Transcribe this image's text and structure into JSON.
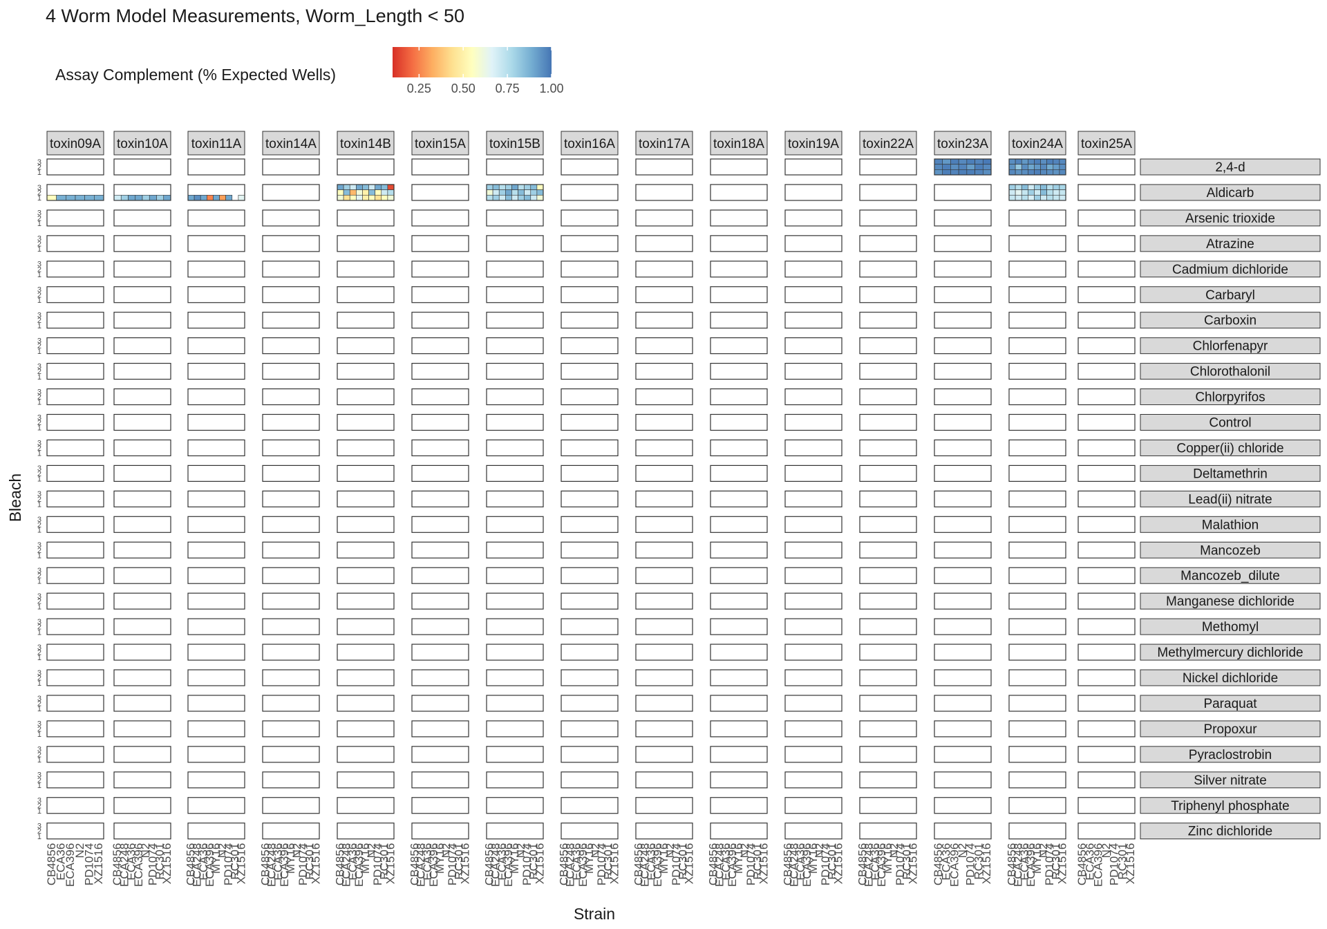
{
  "title": "4 Worm Model Measurements, Worm_Length < 50",
  "chart_data": {
    "type": "heatmap",
    "title": "4 Worm Model Measurements, Worm_Length < 50",
    "xlabel": "Strain",
    "ylabel": "Bleach",
    "legend": {
      "title": "Assay Complement (% Expected Wells)",
      "placement": "top-left",
      "ticks": [
        "0.25",
        "0.50",
        "0.75",
        "1.00"
      ],
      "range": [
        0.1,
        1.0
      ],
      "palette": [
        "#d73027",
        "#f46d43",
        "#fdae61",
        "#fee090",
        "#ffffbf",
        "#e0f3f8",
        "#abd9e9",
        "#74add1",
        "#4575b4"
      ]
    },
    "bleach_levels": [
      "3",
      "2",
      "1"
    ],
    "strains_by_assay": {
      "toxin09A": [
        "CB4856",
        "ECA36",
        "ECA396",
        "N2",
        "PD1074",
        "XZ1516"
      ],
      "toxin10A": [
        "CB4856",
        "ECA248",
        "ECA36",
        "ECA396",
        "N2",
        "PD1074",
        "RC301",
        "XZ1516"
      ],
      "toxin11A": [
        "CB4856",
        "ECA248",
        "ECA36",
        "ECA396",
        "MY16",
        "N2",
        "PD1074",
        "RC301",
        "XZ1516"
      ],
      "toxin14A": [
        "CB4856",
        "ECA248",
        "ECA36",
        "ECA396",
        "MY16",
        "N2",
        "PD1074",
        "RC301",
        "XZ1516"
      ],
      "toxin14B": [
        "CB4856",
        "ECA248",
        "ECA36",
        "ECA396",
        "MY16",
        "N2",
        "PD1074",
        "RC301",
        "XZ1516"
      ],
      "toxin15A": [
        "CB4856",
        "ECA248",
        "ECA36",
        "ECA396",
        "MY16",
        "N2",
        "PD1074",
        "RC301",
        "XZ1516"
      ],
      "toxin15B": [
        "CB4856",
        "ECA248",
        "ECA36",
        "ECA396",
        "MY16",
        "N2",
        "PD1074",
        "RC301",
        "XZ1516"
      ],
      "toxin16A": [
        "CB4856",
        "ECA248",
        "ECA36",
        "ECA396",
        "MY16",
        "N2",
        "PD1074",
        "RC301",
        "XZ1516"
      ],
      "toxin17A": [
        "CB4856",
        "ECA248",
        "ECA36",
        "ECA396",
        "MY16",
        "N2",
        "PD1074",
        "RC301",
        "XZ1516"
      ],
      "toxin18A": [
        "CB4856",
        "ECA248",
        "ECA36",
        "ECA396",
        "MY16",
        "N2",
        "PD1074",
        "RC301",
        "XZ1516"
      ],
      "toxin19A": [
        "CB4856",
        "ECA248",
        "ECA36",
        "ECA396",
        "MY16",
        "N2",
        "PD1074",
        "RC301",
        "XZ1516"
      ],
      "toxin22A": [
        "CB4856",
        "ECA248",
        "ECA36",
        "ECA396",
        "MY16",
        "N2",
        "PD1074",
        "RC301",
        "XZ1516"
      ],
      "toxin23A": [
        "CB4856",
        "ECA36",
        "ECA396",
        "N2",
        "PD1074",
        "RC301",
        "XZ1516"
      ],
      "toxin24A": [
        "CB4856",
        "ECA248",
        "ECA36",
        "ECA396",
        "MY16",
        "N2",
        "PD1074",
        "RC301",
        "XZ1516"
      ],
      "toxin25A": [
        "CB4856",
        "ECA36",
        "ECA396",
        "N2",
        "PD1074",
        "RC301",
        "XZ1516"
      ]
    },
    "assays": [
      "toxin09A",
      "toxin10A",
      "toxin11A",
      "toxin14A",
      "toxin14B",
      "toxin15A",
      "toxin15B",
      "toxin16A",
      "toxin17A",
      "toxin18A",
      "toxin19A",
      "toxin22A",
      "toxin23A",
      "toxin24A",
      "toxin25A"
    ],
    "toxicants": [
      "2,4-d",
      "Aldicarb",
      "Arsenic trioxide",
      "Atrazine",
      "Cadmium dichloride",
      "Carbaryl",
      "Carboxin",
      "Chlorfenapyr",
      "Chlorothalonil",
      "Chlorpyrifos",
      "Control",
      "Copper(ii) chloride",
      "Deltamethrin",
      "Lead(ii) nitrate",
      "Malathion",
      "Mancozeb",
      "Mancozeb_dilute",
      "Manganese dichloride",
      "Methomyl",
      "Methylmercury dichloride",
      "Nickel dichloride",
      "Paraquat",
      "Propoxur",
      "Pyraclostrobin",
      "Silver nitrate",
      "Triphenyl phosphate",
      "Zinc dichloride"
    ],
    "cells_note": "Each filled panel shows 3 bleach rows (3,2,1 top to bottom) by strain columns; values are fraction of expected wells (0-1). Empty strings mean no data.",
    "cells": {
      "2,4-d": {
        "toxin23A": [
          [
            0.97,
            0.93,
            0.98,
            0.96,
            0.98,
            0.97,
            0.99
          ],
          [
            0.96,
            0.98,
            0.95,
            0.97,
            0.92,
            0.98,
            0.96
          ],
          [
            0.94,
            0.98,
            0.97,
            0.98,
            0.98,
            0.97,
            0.95
          ]
        ],
        "toxin24A": [
          [
            0.95,
            0.97,
            0.93,
            0.96,
            0.98,
            0.95,
            0.98,
            0.97,
            0.96
          ],
          [
            0.94,
            0.82,
            0.95,
            0.9,
            0.93,
            0.96,
            0.89,
            0.92,
            0.95
          ],
          [
            0.96,
            0.94,
            0.95,
            0.97,
            0.98,
            0.96,
            0.95,
            0.94,
            0.96
          ]
        ]
      },
      "Aldicarb": {
        "toxin09A": [
          [
            null,
            null,
            null,
            null,
            null,
            null
          ],
          [
            null,
            null,
            null,
            null,
            null,
            null
          ],
          [
            0.55,
            0.88,
            0.88,
            0.88,
            0.88,
            0.88
          ]
        ],
        "toxin10A": [
          [
            null,
            null,
            null,
            null,
            null,
            null,
            null,
            null
          ],
          [
            null,
            null,
            null,
            null,
            null,
            null,
            null,
            null
          ],
          [
            0.7,
            0.8,
            0.9,
            0.9,
            0.8,
            0.9,
            0.8,
            0.9
          ]
        ],
        "toxin11A": [
          [
            null,
            null,
            null,
            null,
            null,
            null,
            null,
            null,
            null
          ],
          [
            null,
            null,
            null,
            null,
            null,
            null,
            null,
            null,
            null
          ],
          [
            0.9,
            0.95,
            0.9,
            0.25,
            0.9,
            0.3,
            0.9,
            null,
            0.65
          ]
        ],
        "toxin14B": [
          [
            0.9,
            0.8,
            0.7,
            0.9,
            0.85,
            0.7,
            0.9,
            0.85,
            0.15
          ],
          [
            0.55,
            0.85,
            0.35,
            0.6,
            0.5,
            0.85,
            0.55,
            0.7,
            0.75
          ],
          [
            0.6,
            0.45,
            0.55,
            0.65,
            0.5,
            0.55,
            0.45,
            0.55,
            0.6
          ]
        ],
        "toxin15B": [
          [
            0.8,
            0.85,
            0.75,
            0.8,
            0.9,
            0.75,
            0.8,
            0.85,
            0.55
          ],
          [
            0.6,
            0.7,
            0.8,
            0.9,
            0.75,
            0.85,
            0.7,
            0.8,
            0.85
          ],
          [
            0.75,
            0.8,
            0.7,
            0.85,
            0.7,
            0.8,
            0.85,
            0.7,
            0.6
          ]
        ],
        "toxin24A": [
          [
            0.8,
            0.75,
            0.85,
            0.7,
            0.8,
            0.85,
            0.75,
            0.8,
            0.78
          ],
          [
            0.7,
            0.65,
            0.72,
            0.8,
            0.7,
            0.85,
            0.75,
            0.7,
            0.72
          ],
          [
            0.72,
            0.7,
            0.75,
            0.68,
            0.8,
            0.7,
            0.75,
            0.72,
            0.7
          ]
        ]
      }
    }
  }
}
